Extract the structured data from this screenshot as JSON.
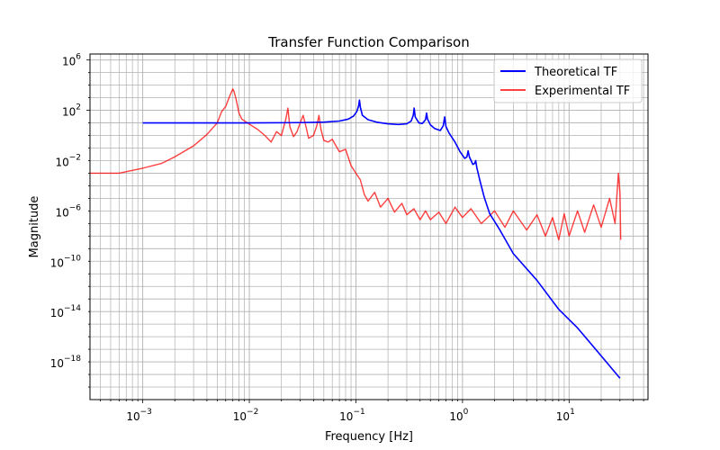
{
  "chart_data": {
    "type": "line",
    "title": "Transfer Function Comparison",
    "xlabel": "Frequency [Hz]",
    "ylabel": "Magnitude",
    "xscale": "log",
    "yscale": "log",
    "xlim": [
      0.00032,
      55
    ],
    "ylim": [
      1e-21,
      3000000.0
    ],
    "grid": "both-major-minor",
    "legend_position": "upper-right",
    "x_ticks": [
      {
        "value": 0.001,
        "base": "10",
        "exp": "−3"
      },
      {
        "value": 0.01,
        "base": "10",
        "exp": "−2"
      },
      {
        "value": 0.1,
        "base": "10",
        "exp": "−1"
      },
      {
        "value": 1,
        "base": "10",
        "exp": "0"
      },
      {
        "value": 10,
        "base": "10",
        "exp": "1"
      }
    ],
    "y_ticks": [
      {
        "value": 1000000.0,
        "base": "10",
        "exp": "6"
      },
      {
        "value": 100.0,
        "base": "10",
        "exp": "2"
      },
      {
        "value": 0.01,
        "base": "10",
        "exp": "−2"
      },
      {
        "value": 1e-06,
        "base": "10",
        "exp": "−6"
      },
      {
        "value": 1e-10,
        "base": "10",
        "exp": "−10"
      },
      {
        "value": 1e-14,
        "base": "10",
        "exp": "−14"
      },
      {
        "value": 1e-18,
        "base": "10",
        "exp": "−18"
      }
    ],
    "series": [
      {
        "name": "Theoretical TF",
        "color": "#0000ff",
        "points": [
          [
            0.001,
            10
          ],
          [
            0.01,
            10
          ],
          [
            0.03,
            10.5
          ],
          [
            0.05,
            11.5
          ],
          [
            0.07,
            14
          ],
          [
            0.085,
            20
          ],
          [
            0.095,
            35
          ],
          [
            0.102,
            80
          ],
          [
            0.106,
            220
          ],
          [
            0.108,
            650
          ],
          [
            0.11,
            180
          ],
          [
            0.115,
            40
          ],
          [
            0.13,
            18
          ],
          [
            0.16,
            11
          ],
          [
            0.2,
            8.5
          ],
          [
            0.25,
            7.5
          ],
          [
            0.3,
            8.5
          ],
          [
            0.33,
            14
          ],
          [
            0.345,
            40
          ],
          [
            0.352,
            150
          ],
          [
            0.36,
            30
          ],
          [
            0.39,
            10
          ],
          [
            0.42,
            9
          ],
          [
            0.45,
            18
          ],
          [
            0.46,
            60
          ],
          [
            0.47,
            20
          ],
          [
            0.5,
            7
          ],
          [
            0.55,
            3.5
          ],
          [
            0.62,
            2.5
          ],
          [
            0.66,
            6
          ],
          [
            0.68,
            30
          ],
          [
            0.7,
            5
          ],
          [
            0.75,
            1.5
          ],
          [
            0.85,
            0.3
          ],
          [
            0.95,
            0.05
          ],
          [
            1.05,
            0.015
          ],
          [
            1.1,
            0.02
          ],
          [
            1.13,
            0.06
          ],
          [
            1.16,
            0.02
          ],
          [
            1.25,
            0.005
          ],
          [
            1.3,
            0.006
          ],
          [
            1.33,
            0.01
          ],
          [
            1.36,
            0.003
          ],
          [
            1.45,
            0.0003
          ],
          [
            1.6,
            1.2e-05
          ],
          [
            1.8,
            6e-07
          ],
          [
            2.2,
            4e-08
          ],
          [
            3,
            4e-10
          ],
          [
            5,
            3e-12
          ],
          [
            8,
            1.5e-14
          ],
          [
            12,
            5e-16
          ],
          [
            20,
            3e-18
          ],
          [
            30,
            5e-20
          ]
        ]
      },
      {
        "name": "Experimental TF",
        "color": "#ff0000",
        "points": [
          [
            0.00032,
            0.001
          ],
          [
            0.0006,
            0.001
          ],
          [
            0.001,
            0.0025
          ],
          [
            0.0015,
            0.006
          ],
          [
            0.002,
            0.02
          ],
          [
            0.003,
            0.15
          ],
          [
            0.004,
            1.2
          ],
          [
            0.005,
            10
          ],
          [
            0.0055,
            80
          ],
          [
            0.006,
            200
          ],
          [
            0.0065,
            1200
          ],
          [
            0.007,
            5000
          ],
          [
            0.0072,
            3000
          ],
          [
            0.0075,
            800
          ],
          [
            0.008,
            60
          ],
          [
            0.0085,
            20
          ],
          [
            0.01,
            8
          ],
          [
            0.012,
            3
          ],
          [
            0.014,
            1
          ],
          [
            0.016,
            0.3
          ],
          [
            0.018,
            2
          ],
          [
            0.02,
            1
          ],
          [
            0.022,
            20
          ],
          [
            0.023,
            150
          ],
          [
            0.024,
            5
          ],
          [
            0.026,
            0.8
          ],
          [
            0.028,
            2
          ],
          [
            0.03,
            10
          ],
          [
            0.032,
            40
          ],
          [
            0.034,
            5
          ],
          [
            0.036,
            0.6
          ],
          [
            0.04,
            1
          ],
          [
            0.043,
            6
          ],
          [
            0.045,
            40
          ],
          [
            0.047,
            3
          ],
          [
            0.05,
            0.4
          ],
          [
            0.055,
            0.3
          ],
          [
            0.06,
            0.5
          ],
          [
            0.065,
            0.15
          ],
          [
            0.07,
            0.05
          ],
          [
            0.08,
            0.08
          ],
          [
            0.09,
            0.004
          ],
          [
            0.1,
            0.001
          ],
          [
            0.11,
            0.0003
          ],
          [
            0.12,
            2e-05
          ],
          [
            0.13,
            6e-06
          ],
          [
            0.15,
            3e-05
          ],
          [
            0.17,
            2e-06
          ],
          [
            0.2,
            1e-05
          ],
          [
            0.23,
            8e-07
          ],
          [
            0.27,
            4e-06
          ],
          [
            0.3,
            5e-07
          ],
          [
            0.35,
            1.5e-06
          ],
          [
            0.4,
            2e-07
          ],
          [
            0.45,
            1e-06
          ],
          [
            0.5,
            2e-07
          ],
          [
            0.6,
            8e-07
          ],
          [
            0.7,
            1e-07
          ],
          [
            0.85,
            2e-06
          ],
          [
            1,
            3e-07
          ],
          [
            1.2,
            1.5e-06
          ],
          [
            1.5,
            1e-07
          ],
          [
            2,
            1e-06
          ],
          [
            2.5,
            5e-08
          ],
          [
            3,
            1e-06
          ],
          [
            4,
            3e-08
          ],
          [
            5,
            5e-07
          ],
          [
            6,
            1e-08
          ],
          [
            7,
            3e-07
          ],
          [
            8,
            5e-09
          ],
          [
            9,
            6e-07
          ],
          [
            10,
            1e-08
          ],
          [
            12,
            1e-06
          ],
          [
            14,
            2e-08
          ],
          [
            17,
            3e-06
          ],
          [
            20,
            5e-08
          ],
          [
            24,
            1e-05
          ],
          [
            27,
            1e-07
          ],
          [
            29,
            0.001
          ],
          [
            30,
            3e-05
          ],
          [
            30.5,
            5e-09
          ]
        ]
      }
    ]
  }
}
